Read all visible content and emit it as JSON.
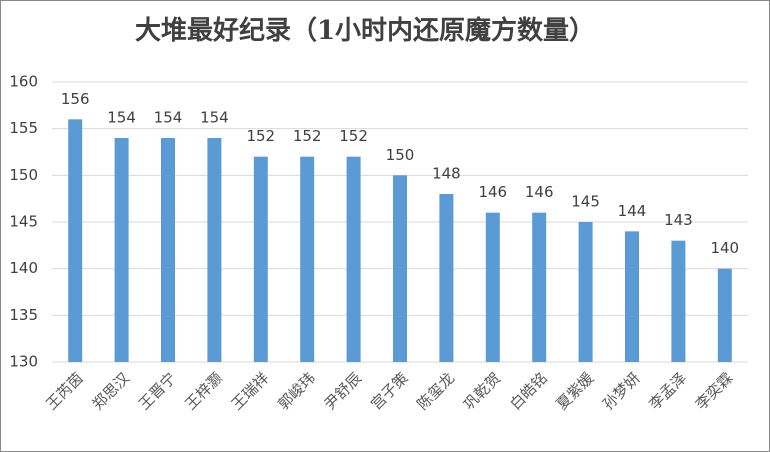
{
  "chart_data": {
    "type": "bar",
    "title": "大堆最好纪录（1小时内还原魔方数量）",
    "categories": [
      "王芮茵",
      "郑思汉",
      "王晋宁",
      "王梓灏",
      "王瑞祥",
      "郭峻玮",
      "尹舒辰",
      "宫子策",
      "陈玺龙",
      "巩乾贺",
      "白皓铭",
      "夏紫媛",
      "孙梦妍",
      "李孟泽",
      "李奕霖"
    ],
    "values": [
      156,
      154,
      154,
      154,
      152,
      152,
      152,
      150,
      148,
      146,
      146,
      145,
      144,
      143,
      140
    ],
    "color": "#5b9bd5",
    "ylim": [
      130,
      160
    ],
    "yticks": [
      130,
      135,
      140,
      145,
      150,
      155,
      160
    ],
    "grid": true
  }
}
